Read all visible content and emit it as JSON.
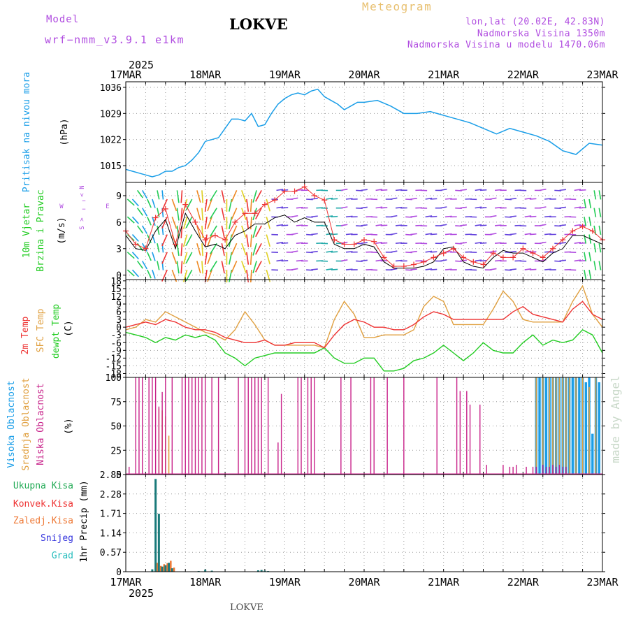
{
  "header": {
    "model_label": "Model",
    "model_name": "wrf−nmm_v3.9.1 e1km",
    "title": "LOKVE",
    "meteogram": "Meteogram",
    "lonlat": "lon,lat (20.02E, 42.83N)",
    "elevation": "Nadmorska Visina 1350m",
    "model_elevation": "Nadmorska Visina u modelu 1470.06m"
  },
  "footer": {
    "station": "LOKVE",
    "credit": "made by Angel"
  },
  "colors": {
    "pressure": "#1a9ee8",
    "wind_label": "#22cc22",
    "temp2m": "#ee3333",
    "sfc": "#e0a040",
    "dew": "#22cc22",
    "high_cloud": "#1a9ee8",
    "mid_cloud": "#e0a040",
    "low_cloud": "#c8228a",
    "purple": "#b04ce0",
    "rain_total": "#22aa55",
    "rain_conv": "#ee3333",
    "rain_frz": "#ee7733",
    "snow": "#3333dd",
    "hail": "#22bbbb",
    "precip_bar": "#1a7a7a"
  },
  "chart_data": [
    {
      "type": "line",
      "name": "pressure",
      "ylabel": [
        "Pritisak na nivou mora",
        "(hPa)"
      ],
      "yticks": [
        1015,
        1022,
        1029,
        1036
      ],
      "ylim": [
        1010.5,
        1037.5
      ],
      "x_hours": [
        0,
        2,
        4,
        6,
        8,
        10,
        12,
        14,
        16,
        18,
        20,
        22,
        24,
        26,
        28,
        30,
        32,
        34,
        36,
        38,
        40,
        42,
        44,
        46,
        48,
        50,
        52,
        54,
        56,
        58,
        60,
        62,
        64,
        66,
        68,
        70,
        72,
        76,
        80,
        84,
        88,
        92,
        96,
        100,
        104,
        108,
        112,
        116,
        120,
        124,
        128,
        132,
        136,
        140,
        144
      ],
      "values": [
        1014,
        1013.5,
        1013,
        1012.5,
        1012,
        1012.5,
        1013.5,
        1013.5,
        1014.5,
        1015,
        1016.5,
        1018.5,
        1021.5,
        1022,
        1022.5,
        1025,
        1027.5,
        1027.5,
        1027,
        1029,
        1025.5,
        1026,
        1029,
        1031.5,
        1033,
        1034,
        1034.5,
        1034,
        1035,
        1035.5,
        1033.5,
        1032.5,
        1031.5,
        1030,
        1031,
        1032,
        1032,
        1032.5,
        1031,
        1029,
        1029,
        1029.5,
        1028.5,
        1027.5,
        1026.5,
        1025,
        1023.5,
        1025,
        1024,
        1023,
        1021.5,
        1019,
        1018,
        1021,
        1020.5
      ]
    },
    {
      "type": "line",
      "name": "wind",
      "ylabel": [
        "10m Vjetar",
        "Brzina i Pravac",
        "(m/s)"
      ],
      "yticks": [
        0,
        3,
        6,
        9
      ],
      "ylim": [
        -0.5,
        10.5
      ],
      "compass": [
        "N",
        "W",
        "<",
        "−",
        "−",
        ">",
        "E",
        "S"
      ],
      "x_hours": [
        0,
        3,
        6,
        9,
        12,
        15,
        18,
        21,
        24,
        27,
        30,
        33,
        36,
        39,
        42,
        45,
        48,
        51,
        54,
        57,
        60,
        63,
        66,
        69,
        72,
        75,
        78,
        81,
        84,
        87,
        90,
        93,
        96,
        99,
        102,
        105,
        108,
        111,
        114,
        117,
        120,
        123,
        126,
        129,
        132,
        135,
        138,
        141,
        144
      ],
      "speed": [
        4.5,
        3,
        2.8,
        5,
        6.3,
        3,
        7,
        5,
        3.2,
        3.5,
        3,
        4.5,
        5,
        5.8,
        5.8,
        6.5,
        6.8,
        6,
        6.5,
        6,
        6,
        3.5,
        3,
        3,
        3.5,
        3.2,
        1.5,
        0.8,
        0.8,
        0.8,
        1,
        1.5,
        3,
        3.2,
        1.5,
        1,
        0.8,
        2,
        2.8,
        2.5,
        2.5,
        2,
        1.5,
        2.5,
        3,
        4.5,
        4.5,
        4,
        3.5
      ],
      "gust": [
        5,
        3.5,
        3,
        6.5,
        7.5,
        3.5,
        8,
        6,
        4,
        4.5,
        4,
        6,
        7,
        7,
        8,
        8.5,
        9.5,
        9.5,
        10,
        9,
        8.5,
        4,
        3.5,
        3.5,
        4,
        3.8,
        2,
        1,
        1,
        1.2,
        1.5,
        2,
        2.5,
        3,
        2,
        1.5,
        1.2,
        2.5,
        2,
        2,
        3,
        2.5,
        2,
        3,
        4,
        5,
        5.5,
        5,
        4
      ]
    },
    {
      "type": "line",
      "name": "temperature",
      "ylabel": [
        "2m Temp",
        "SFC Temp",
        "dewpt Temp",
        "(C)"
      ],
      "yticks": [
        -18,
        -15,
        -12,
        -9,
        -6,
        -3,
        0,
        3,
        6,
        9,
        12,
        15,
        18
      ],
      "ylim": [
        -19.5,
        18.5
      ],
      "x_hours": [
        0,
        3,
        6,
        9,
        12,
        15,
        18,
        21,
        24,
        27,
        30,
        33,
        36,
        39,
        42,
        45,
        48,
        51,
        54,
        57,
        60,
        63,
        66,
        69,
        72,
        75,
        78,
        81,
        84,
        87,
        90,
        93,
        96,
        99,
        102,
        105,
        108,
        111,
        114,
        117,
        120,
        123,
        126,
        129,
        132,
        135,
        138,
        141,
        144
      ],
      "t2m": [
        0,
        1,
        2,
        1,
        3,
        2,
        0,
        -1,
        -1,
        -2,
        -4,
        -5,
        -6,
        -6,
        -5,
        -7,
        -7,
        -6,
        -6,
        -6,
        -8,
        -3,
        1,
        3,
        2,
        0,
        0,
        -1,
        -1,
        1,
        4,
        6,
        5,
        3,
        3,
        3,
        3,
        3,
        3,
        6,
        8,
        5,
        4,
        3,
        2,
        7,
        10,
        5,
        3
      ],
      "sfc": [
        -1,
        0,
        3,
        2,
        6,
        4,
        2,
        0,
        -2,
        -3,
        -5,
        -1,
        6,
        1,
        -5,
        -7,
        -7,
        -7,
        -7,
        -7,
        -8,
        3,
        10,
        5,
        -4,
        -4,
        -3,
        -3,
        -3,
        -1,
        8,
        12,
        10,
        1,
        1,
        1,
        1,
        7,
        14,
        10,
        3,
        2,
        2,
        2,
        2,
        10,
        16,
        5,
        0
      ],
      "dew": [
        -2,
        -3,
        -4,
        -6,
        -4,
        -5,
        -3,
        -4,
        -3,
        -5,
        -10,
        -12,
        -15,
        -12,
        -11,
        -10,
        -10,
        -10,
        -10,
        -10,
        -8,
        -12,
        -14,
        -14,
        -12,
        -12,
        -17,
        -17,
        -16,
        -13,
        -12,
        -10,
        -7,
        -10,
        -13,
        -10,
        -6,
        -9,
        -10,
        -10,
        -6,
        -3,
        -7,
        -5,
        -6,
        -5,
        -1,
        -3,
        -10
      ]
    },
    {
      "type": "bar",
      "name": "clouds",
      "ylabel": [
        "Visoka Oblacnost",
        "Srednja Oblacnost",
        "Niska Oblacnost",
        "(%)"
      ],
      "yticks": [
        0,
        25,
        50,
        75,
        100
      ],
      "ylim": [
        0,
        100
      ],
      "low_x": [
        1,
        3,
        4,
        5,
        7,
        8,
        9,
        10,
        11,
        12,
        14,
        17,
        18,
        19,
        20,
        21,
        22,
        23,
        24,
        26,
        28,
        34,
        36,
        37,
        38,
        39,
        40,
        41,
        43,
        46,
        47,
        52,
        53,
        55,
        56,
        57,
        65,
        68,
        74,
        75,
        79,
        84,
        94,
        100,
        101,
        103,
        104,
        107,
        109,
        114,
        116,
        117,
        118,
        121,
        123,
        124,
        126,
        127,
        128,
        129,
        130,
        131,
        132,
        133
      ],
      "low_v": [
        8,
        100,
        100,
        100,
        100,
        100,
        100,
        70,
        85,
        100,
        100,
        100,
        100,
        100,
        100,
        100,
        100,
        100,
        100,
        100,
        100,
        100,
        100,
        100,
        100,
        100,
        100,
        100,
        100,
        33,
        83,
        100,
        100,
        100,
        100,
        100,
        100,
        100,
        100,
        100,
        100,
        100,
        100,
        100,
        86,
        86,
        72,
        72,
        10,
        10,
        8,
        8,
        10,
        8,
        8,
        8,
        10,
        8,
        8,
        10,
        8,
        10,
        8,
        8
      ],
      "mid_x": [
        10,
        11,
        12,
        13,
        124,
        126,
        128,
        129,
        130,
        131,
        132,
        133,
        134,
        136,
        138,
        140,
        142
      ],
      "mid_v": [
        68,
        66,
        60,
        40,
        100,
        100,
        100,
        100,
        100,
        100,
        100,
        100,
        100,
        100,
        100,
        90,
        100
      ],
      "high_x": [
        124,
        125,
        126,
        127,
        128,
        129,
        130,
        131,
        132,
        133,
        134,
        135,
        136,
        137,
        138,
        139,
        140,
        141,
        142,
        143
      ],
      "high_v": [
        100,
        100,
        100,
        100,
        100,
        100,
        100,
        100,
        100,
        100,
        100,
        100,
        100,
        100,
        100,
        95,
        100,
        42,
        100,
        95
      ]
    },
    {
      "type": "bar",
      "name": "precipitation",
      "ylabel": [
        "Ukupna Kisa",
        "Konvek.Kisa",
        "Zaledj.Kisa",
        "Snijeg",
        "Grad",
        "1hr Precip (mm)"
      ],
      "yticks": [
        0,
        0.57,
        1.14,
        1.71,
        2.28,
        2.85
      ],
      "ylim": [
        0,
        2.85
      ],
      "xaxis_year": "2025",
      "x_hours": [
        8,
        9,
        10,
        11,
        12,
        13,
        14,
        22,
        24,
        26,
        40,
        41,
        42,
        43
      ],
      "total": [
        0.07,
        2.72,
        1.7,
        0.15,
        0.19,
        0.26,
        0.1,
        0.02,
        0.06,
        0.03,
        0.04,
        0.05,
        0.03,
        0.02
      ],
      "other": [
        0.0,
        0.26,
        0.17,
        0.22,
        0.25,
        0.32,
        0.12,
        0.0,
        0.0,
        0.0,
        0.0,
        0.0,
        0.0,
        0.0
      ]
    }
  ],
  "time_axis": {
    "year": "2025",
    "labels": [
      "17MAR",
      "18MAR",
      "19MAR",
      "20MAR",
      "21MAR",
      "22MAR",
      "23MAR"
    ],
    "hours": [
      0,
      24,
      48,
      72,
      96,
      120,
      144
    ]
  }
}
